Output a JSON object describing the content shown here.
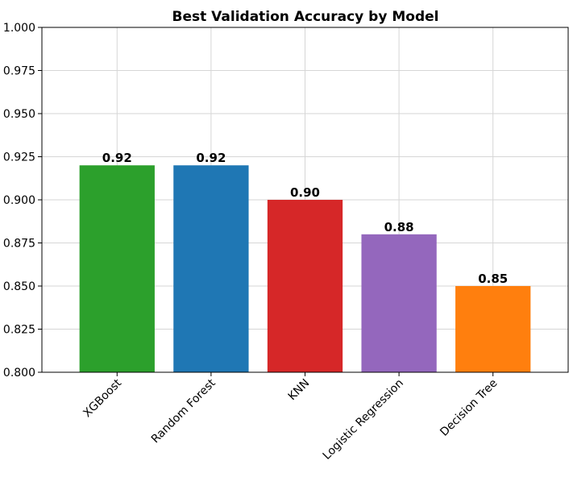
{
  "chart_data": {
    "type": "bar",
    "title": "Best Validation Accuracy by Model",
    "xlabel": "",
    "ylabel": "",
    "categories": [
      "XGBoost",
      "Random Forest",
      "KNN",
      "Logistic Regression",
      "Decision Tree"
    ],
    "values": [
      0.92,
      0.92,
      0.9,
      0.88,
      0.85
    ],
    "data_labels": [
      "0.92",
      "0.92",
      "0.90",
      "0.88",
      "0.85"
    ],
    "colors": [
      "#2ca02c",
      "#1f77b4",
      "#d62728",
      "#9467bd",
      "#ff7f0e"
    ],
    "ylim": [
      0.8,
      1.0
    ],
    "yticks": [
      "0.800",
      "0.825",
      "0.850",
      "0.875",
      "0.900",
      "0.925",
      "0.950",
      "0.975",
      "1.000"
    ],
    "grid": true,
    "legend": "none"
  }
}
